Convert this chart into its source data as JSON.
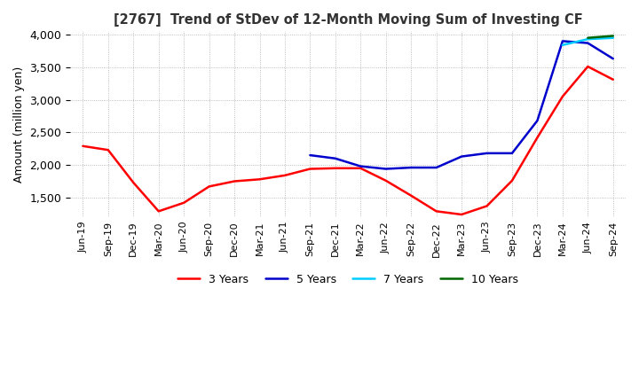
{
  "title": "[2767]  Trend of StDev of 12-Month Moving Sum of Investing CF",
  "ylabel": "Amount (million yen)",
  "line_colors": {
    "3Y": "#ff0000",
    "5Y": "#0000cc",
    "7Y": "#00ccff",
    "10Y": "#006600"
  },
  "ylim": [
    1200,
    4050
  ],
  "yticks": [
    1500,
    2000,
    2500,
    3000,
    3500,
    4000
  ],
  "background_color": "#ffffff",
  "grid_color": "#aaaaaa",
  "x_labels": [
    "Jun-19",
    "Sep-19",
    "Dec-19",
    "Mar-20",
    "Jun-20",
    "Sep-20",
    "Dec-20",
    "Mar-21",
    "Jun-21",
    "Sep-21",
    "Dec-21",
    "Mar-22",
    "Jun-22",
    "Sep-22",
    "Dec-22",
    "Mar-23",
    "Jun-23",
    "Sep-23",
    "Dec-23",
    "Mar-24",
    "Jun-24",
    "Sep-24"
  ],
  "data_3Y": [
    2290,
    2230,
    1730,
    1290,
    1420,
    1670,
    1750,
    1780,
    1840,
    1940,
    1950,
    1950,
    1760,
    1530,
    1290,
    1240,
    1370,
    1760,
    2420,
    3050,
    3510,
    3310
  ],
  "data_5Y": [
    null,
    null,
    null,
    null,
    null,
    null,
    null,
    null,
    null,
    2150,
    2100,
    1980,
    1940,
    1960,
    1960,
    2130,
    2180,
    2180,
    2680,
    3900,
    3870,
    3630
  ],
  "data_7Y": [
    null,
    null,
    null,
    null,
    null,
    null,
    null,
    null,
    null,
    null,
    null,
    null,
    null,
    null,
    null,
    null,
    null,
    null,
    null,
    3840,
    3930,
    3950
  ],
  "data_10Y": [
    null,
    null,
    null,
    null,
    null,
    null,
    null,
    null,
    null,
    null,
    null,
    null,
    null,
    null,
    null,
    null,
    null,
    null,
    null,
    null,
    3950,
    3980
  ]
}
